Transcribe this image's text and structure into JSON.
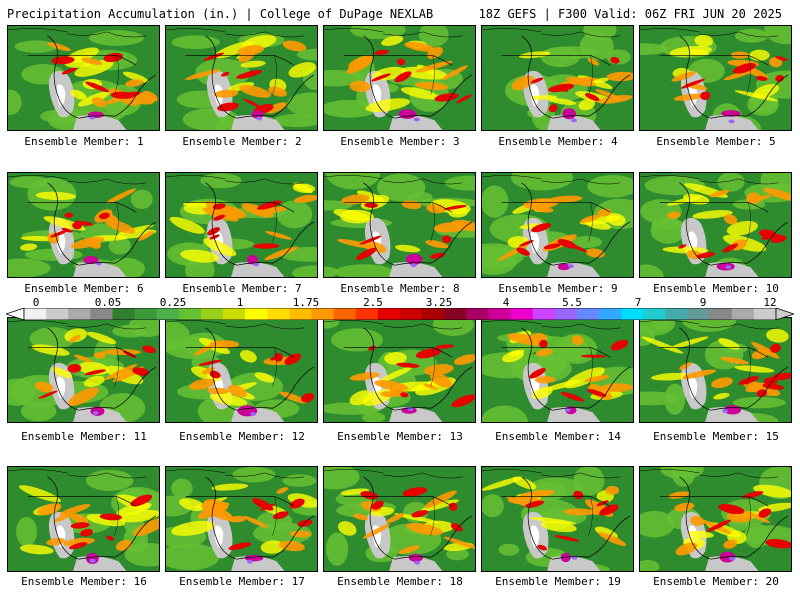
{
  "header": {
    "left_title": "Precipitation Accumulation (in.) | College of DuPage NEXLAB",
    "right_title": "18Z GEFS | F300 Valid: 06Z FRI JUN 20 2025"
  },
  "members": [
    "Ensemble Member: 1",
    "Ensemble Member: 2",
    "Ensemble Member: 3",
    "Ensemble Member: 4",
    "Ensemble Member: 5",
    "Ensemble Member: 6",
    "Ensemble Member: 7",
    "Ensemble Member: 8",
    "Ensemble Member: 9",
    "Ensemble Member: 10",
    "Ensemble Member: 11",
    "Ensemble Member: 12",
    "Ensemble Member: 13",
    "Ensemble Member: 14",
    "Ensemble Member: 15",
    "Ensemble Member: 16",
    "Ensemble Member: 17",
    "Ensemble Member: 18",
    "Ensemble Member: 19",
    "Ensemble Member: 20"
  ],
  "colorbar": {
    "labels": [
      "0",
      "0.05",
      "0.25",
      "1",
      "1.75",
      "2.5",
      "3.25",
      "4",
      "5.5",
      "7",
      "9",
      "12"
    ],
    "colors": [
      "#f0f0f0",
      "#cccccc",
      "#aaaaaa",
      "#888888",
      "#2f7f2f",
      "#3c9a3c",
      "#4db04d",
      "#66c033",
      "#99d11a",
      "#ccdd00",
      "#ffff00",
      "#ffdd00",
      "#ffbb00",
      "#ff9900",
      "#ff6600",
      "#ff3300",
      "#e60000",
      "#cc0000",
      "#a80000",
      "#880022",
      "#aa0066",
      "#cc0099",
      "#ee00cc",
      "#cc44ff",
      "#9966ff",
      "#6688ff",
      "#33aaff",
      "#00ddff",
      "#22cccc",
      "#44aaaa",
      "#669999",
      "#888888",
      "#aaaaaa",
      "#cccccc"
    ]
  },
  "map_colors": {
    "base": "#2e8b2e",
    "light_green": "#66c033",
    "yellow": "#ffff00",
    "orange": "#ff9900",
    "red": "#e60000",
    "magenta": "#cc0099",
    "dry": "#c8c8c8",
    "blue": "#9966ff"
  }
}
